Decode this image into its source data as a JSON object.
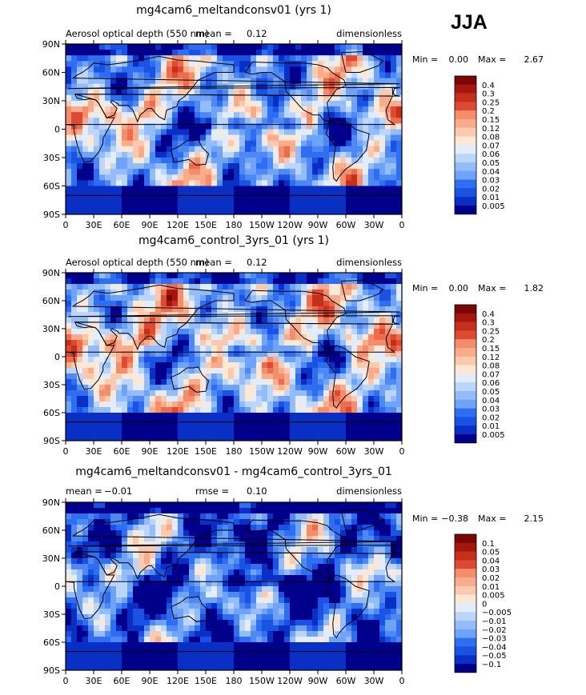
{
  "season": "JJA",
  "colors": {
    "aod": [
      "#00008b",
      "#0a2fc4",
      "#1a52e3",
      "#2f6df1",
      "#4e88f5",
      "#6fa3f7",
      "#93bcf8",
      "#bcd6fb",
      "#e2ecfb",
      "#fde8d6",
      "#fbc9ad",
      "#f8ac8c",
      "#f48d6c",
      "#ec6c4d",
      "#dd4a31",
      "#c52f1c",
      "#a3170f",
      "#7a0606"
    ],
    "diff": [
      "#00008b",
      "#0a2fc4",
      "#1a52e3",
      "#2f6df1",
      "#4e88f5",
      "#6fa3f7",
      "#93bcf8",
      "#bcd6fb",
      "#e2ecfb",
      "#fde8d6",
      "#fbc9ad",
      "#f8ac8c",
      "#f48d6c",
      "#ec6c4d",
      "#dd4a31",
      "#c52f1c",
      "#a3170f",
      "#7a0606"
    ],
    "land": "#000000"
  },
  "chart_data": [
    {
      "type": "heatmap",
      "title": "mg4cam6_meltandconsv01 (yrs 1)",
      "variable": "Aerosol optical depth (550 nm)",
      "mean_label": "mean =",
      "mean": "0.12",
      "units": "dimensionless",
      "min_label": "Min =",
      "min": "0.00",
      "max_label": "Max =",
      "max": "2.67",
      "xticks": [
        "0",
        "30E",
        "60E",
        "90E",
        "120E",
        "150E",
        "180",
        "150W",
        "120W",
        "90W",
        "60W",
        "30W",
        "0"
      ],
      "yticks": [
        "90N",
        "60N",
        "30N",
        "0",
        "30S",
        "60S",
        "90S"
      ],
      "colorbar": [
        "0.4",
        "0.3",
        "0.25",
        "0.2",
        "0.15",
        "0.12",
        "0.08",
        "0.07",
        "0.06",
        "0.05",
        "0.04",
        "0.03",
        "0.02",
        "0.01",
        "0.005"
      ],
      "scale": "aod",
      "base": 0.6
    },
    {
      "type": "heatmap",
      "title": "mg4cam6_control_3yrs_01 (yrs 1)",
      "variable": "Aerosol optical depth (550 nm)",
      "mean_label": "mean =",
      "mean": "0.12",
      "units": "dimensionless",
      "min_label": "Min =",
      "min": "0.00",
      "max_label": "Max =",
      "max": "1.82",
      "xticks": [
        "0",
        "30E",
        "60E",
        "90E",
        "120E",
        "150E",
        "180",
        "150W",
        "120W",
        "90W",
        "60W",
        "30W",
        "0"
      ],
      "yticks": [
        "90N",
        "60N",
        "30N",
        "0",
        "30S",
        "60S",
        "90S"
      ],
      "colorbar": [
        "0.4",
        "0.3",
        "0.25",
        "0.2",
        "0.15",
        "0.12",
        "0.08",
        "0.07",
        "0.06",
        "0.05",
        "0.04",
        "0.03",
        "0.02",
        "0.01",
        "0.005"
      ],
      "scale": "aod",
      "base": 0.66
    },
    {
      "type": "heatmap",
      "title": "mg4cam6_meltandconsv01 - mg4cam6_control_3yrs_01",
      "mean_label": "mean =",
      "mean": "−0.01",
      "rmse_label": "rmse =",
      "rmse": "0.10",
      "units": "dimensionless",
      "min_label": "Min =",
      "min": "−0.38",
      "max_label": "Max =",
      "max": "2.15",
      "xticks": [
        "0",
        "30E",
        "60E",
        "90E",
        "120E",
        "150E",
        "180",
        "150W",
        "120W",
        "90W",
        "60W",
        "30W",
        "0"
      ],
      "yticks": [
        "90N",
        "60N",
        "30N",
        "0",
        "30S",
        "60S",
        "90S"
      ],
      "colorbar": [
        "0.1",
        "0.05",
        "0.04",
        "0.03",
        "0.02",
        "0.01",
        "0.005",
        "0",
        "−0.005",
        "−0.01",
        "−0.02",
        "−0.03",
        "−0.04",
        "−0.05",
        "−0.1"
      ],
      "scale": "diff",
      "base": 0.45
    }
  ]
}
